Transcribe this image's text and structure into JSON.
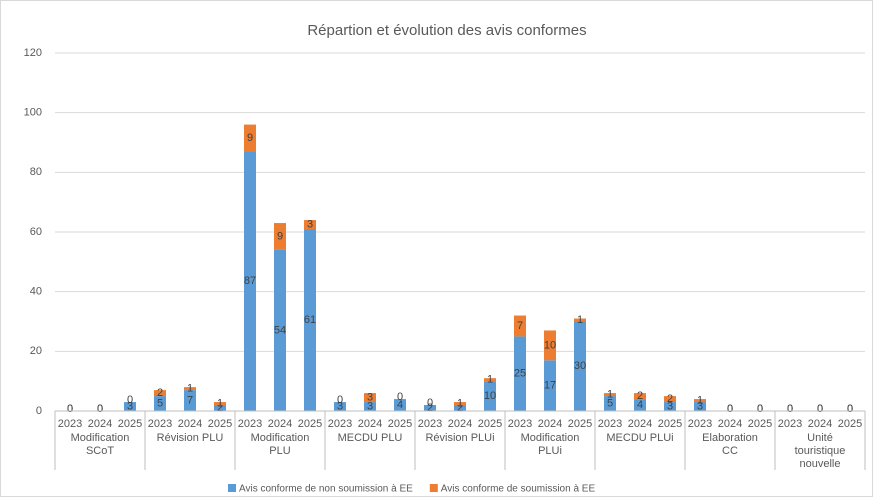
{
  "chart_data": {
    "type": "stacked_bar",
    "title": "Répartion et évolution des avis conformes",
    "groups": [
      "Modification SCoT",
      "Révision PLU",
      "Modification PLU",
      "MECDU PLU",
      "Révision PLUi",
      "Modification PLUi",
      "MECDU PLUi",
      "Elaboration CC",
      "Unité touristique nouvelle"
    ],
    "categories": [
      "2023",
      "2024",
      "2025",
      "2023",
      "2024",
      "2025",
      "2023",
      "2024",
      "2025",
      "2023",
      "2024",
      "2025",
      "2023",
      "2024",
      "2025",
      "2023",
      "2024",
      "2025",
      "2023",
      "2024",
      "2025",
      "2023",
      "2024",
      "2025",
      "2023",
      "2024",
      "2025"
    ],
    "series": [
      {
        "name": "Avis conforme de non soumission à EE",
        "color": "#5b9bd5",
        "values": [
          0,
          0,
          3,
          5,
          7,
          2,
          87,
          54,
          61,
          3,
          3,
          4,
          2,
          2,
          10,
          25,
          17,
          30,
          5,
          4,
          3,
          3,
          0,
          0,
          0,
          0,
          0
        ]
      },
      {
        "name": "Avis conforme de soumission à EE",
        "color": "#ed7d31",
        "values": [
          0,
          0,
          0,
          2,
          1,
          1,
          9,
          9,
          3,
          0,
          3,
          0,
          0,
          1,
          1,
          7,
          10,
          1,
          1,
          2,
          2,
          1,
          0,
          0,
          0,
          0,
          0
        ]
      }
    ],
    "ylim": [
      0,
      120
    ],
    "yticks": [
      0,
      20,
      40,
      60,
      80,
      100,
      120
    ],
    "grid": true,
    "legend": "bottom"
  }
}
